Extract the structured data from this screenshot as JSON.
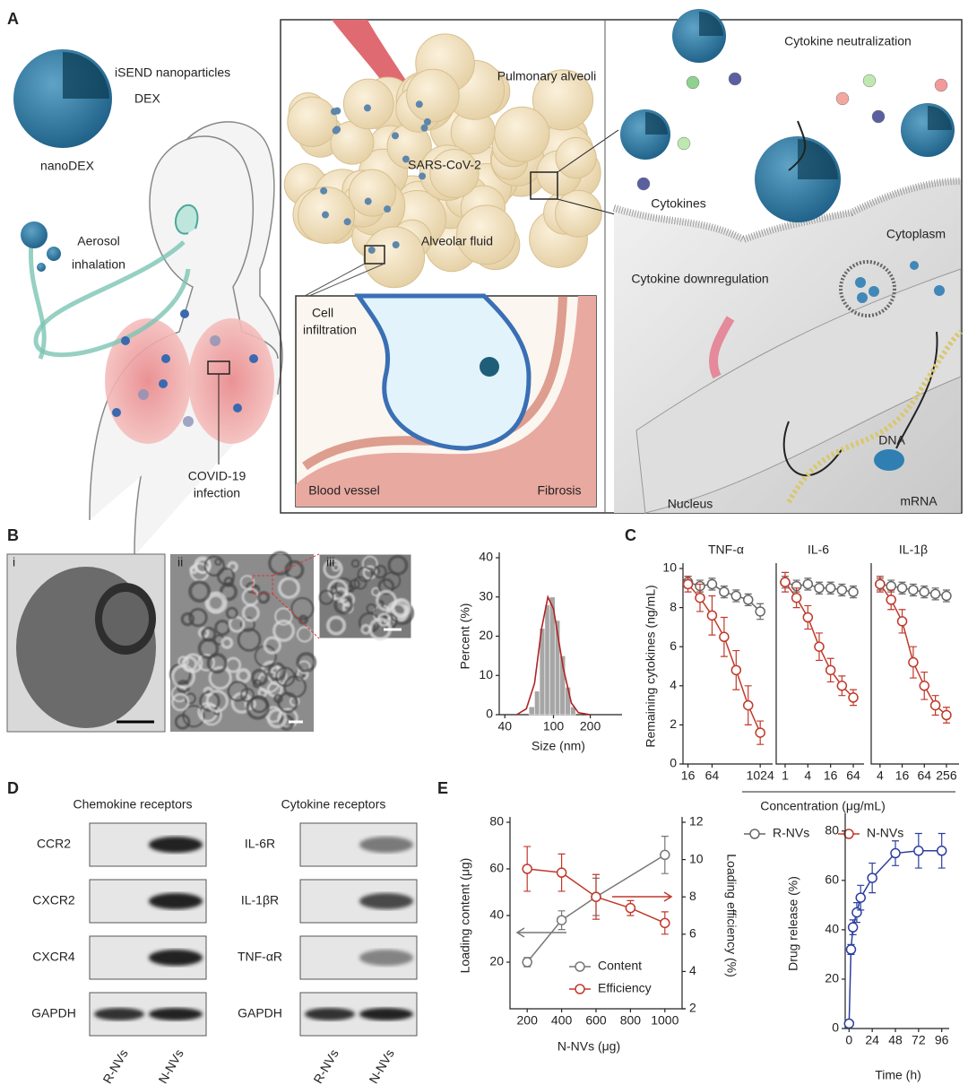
{
  "figure": {
    "panel_a": {
      "letter": "A",
      "nanoparticle": "iSEND nanoparticles",
      "dex": "DEX",
      "nanodex": "nanoDEX",
      "aerosol": [
        "Aerosol",
        "inhalation"
      ],
      "covid": [
        "COVID-19",
        "infection"
      ],
      "alveoli": "Pulmonary alveoli",
      "virus": "SARS-CoV-2",
      "fluid": "Alveolar fluid",
      "infiltration": [
        "Cell",
        "infiltration"
      ],
      "vessel": "Blood vessel",
      "fibrosis": "Fibrosis",
      "neutralization": "Cytokine neutralization",
      "cytokines": "Cytokines",
      "cytoplasm": "Cytoplasm",
      "downregulation": "Cytokine downregulation",
      "dna": "DNA",
      "nucleus": "Nucleus",
      "mrna": "mRNA"
    },
    "panel_b": {
      "letter": "B",
      "images": [
        "i",
        "ii",
        "iii"
      ]
    },
    "panel_c": {
      "letter": "C"
    },
    "panel_d": {
      "letter": "D",
      "groups": [
        {
          "title": "Chemokine receptors",
          "rows": [
            "CCR2",
            "CXCR2",
            "CXCR4",
            "GAPDH"
          ],
          "lanes": [
            "R-NVs",
            "N-NVs"
          ]
        },
        {
          "title": "Cytokine receptors",
          "rows": [
            "IL-6R",
            "IL-1βR",
            "TNF-αR",
            "GAPDH"
          ],
          "lanes": [
            "R-NVs",
            "N-NVs"
          ]
        }
      ]
    },
    "panel_e": {
      "letter": "E"
    }
  },
  "chart_data": [
    {
      "type": "histogram",
      "xlabel": "Size (nm)",
      "ylabel": "Percent (%)",
      "xscale": "log",
      "xlim": [
        36,
        340
      ],
      "ylim": [
        0,
        40
      ],
      "xticks": [
        40,
        100,
        200
      ],
      "yticks": [
        0,
        10,
        20,
        30,
        40
      ],
      "color": "#a6a6a6",
      "bins": [
        63,
        70,
        77,
        85,
        93,
        103,
        113,
        125,
        138,
        152
      ],
      "counts": [
        2,
        6,
        22,
        28,
        30,
        24,
        15,
        7,
        2
      ],
      "curve": {
        "color": "#b22222",
        "x": [
          50,
          60,
          70,
          80,
          90,
          100,
          120,
          140,
          160,
          200
        ],
        "values": [
          0,
          1.5,
          8,
          22,
          30,
          27,
          12,
          3,
          0.5,
          0
        ]
      }
    },
    {
      "type": "line",
      "title": "TNF-α",
      "ylabel": "Remaining cytokines (ng/mL)",
      "xscale": "log",
      "xlim": [
        12,
        1700
      ],
      "ylim": [
        0,
        10
      ],
      "xticks": [
        16,
        64,
        1024
      ],
      "yticks": [
        0,
        2,
        4,
        6,
        8,
        10
      ],
      "x": [
        16,
        32,
        64,
        128,
        256,
        512,
        1024
      ],
      "series": [
        {
          "name": "R-NVs",
          "color": "#666666",
          "values": [
            9.3,
            9.1,
            9.2,
            8.8,
            8.6,
            8.4,
            7.8
          ],
          "errors": [
            0.3,
            0.3,
            0.3,
            0.3,
            0.3,
            0.3,
            0.4
          ]
        },
        {
          "name": "N-NVs",
          "color": "#c0392b",
          "values": [
            9.2,
            8.5,
            7.6,
            6.5,
            4.8,
            3.0,
            1.6
          ],
          "errors": [
            0.4,
            0.7,
            1.0,
            1.0,
            1.0,
            1.0,
            0.6
          ]
        }
      ]
    },
    {
      "type": "line",
      "title": "IL-6",
      "xlabel": "Concentration (μg/mL)",
      "xscale": "log",
      "xlim": [
        0.58,
        99
      ],
      "ylim": [
        0,
        10
      ],
      "xticks": [
        1,
        4,
        16,
        64
      ],
      "x": [
        1,
        2,
        4,
        8,
        16,
        32,
        64
      ],
      "series": [
        {
          "color": "#666666",
          "values": [
            9.3,
            9.1,
            9.2,
            9.0,
            9.0,
            8.9,
            8.8
          ],
          "errors": [
            0.3,
            0.3,
            0.3,
            0.3,
            0.3,
            0.3,
            0.3
          ]
        },
        {
          "color": "#c0392b",
          "values": [
            9.3,
            8.5,
            7.5,
            6.0,
            4.8,
            4.0,
            3.4
          ],
          "errors": [
            0.5,
            0.5,
            0.6,
            0.7,
            0.6,
            0.5,
            0.4
          ]
        }
      ]
    },
    {
      "type": "line",
      "title": "IL-1β",
      "xscale": "log",
      "xlim": [
        2.3,
        450
      ],
      "ylim": [
        0,
        10
      ],
      "xticks": [
        4,
        16,
        64,
        256
      ],
      "x": [
        4,
        8,
        16,
        32,
        64,
        128,
        256
      ],
      "series": [
        {
          "color": "#666666",
          "values": [
            9.2,
            9.1,
            9.0,
            8.9,
            8.8,
            8.7,
            8.6
          ],
          "errors": [
            0.3,
            0.3,
            0.3,
            0.3,
            0.3,
            0.3,
            0.3
          ]
        },
        {
          "color": "#c0392b",
          "values": [
            9.2,
            8.4,
            7.3,
            5.2,
            4.0,
            3.0,
            2.5
          ],
          "errors": [
            0.4,
            0.5,
            0.6,
            0.8,
            0.7,
            0.5,
            0.4
          ]
        }
      ]
    },
    {
      "type": "line",
      "xlabel": "N-NVs (μg)",
      "ylabel": "Loading content (μg)",
      "y2label": "Loading efficiency (%)",
      "xlim": [
        100,
        1100
      ],
      "ylim": [
        0,
        80
      ],
      "y2lim": [
        2,
        12
      ],
      "xticks": [
        200,
        400,
        600,
        800,
        1000
      ],
      "yticks": [
        20,
        40,
        60,
        80
      ],
      "y2ticks": [
        2,
        4,
        6,
        8,
        10,
        12
      ],
      "series": [
        {
          "name": "Content",
          "color": "#777777",
          "x": [
            200,
            400,
            600,
            1000
          ],
          "values": [
            20,
            38,
            48,
            66
          ],
          "errors": [
            2,
            4,
            8,
            8
          ]
        },
        {
          "name": "Efficiency",
          "color": "#c0392b",
          "axis": "y2",
          "x": [
            200,
            400,
            600,
            800,
            1000
          ],
          "values": [
            9.5,
            9.3,
            8.0,
            7.4,
            6.6
          ],
          "errors": [
            1.2,
            1.0,
            1.2,
            0.4,
            0.6
          ]
        }
      ]
    },
    {
      "type": "line",
      "xlabel": "Time (h)",
      "ylabel": "Drug release (%)",
      "xlim": [
        -4,
        100
      ],
      "ylim": [
        0,
        85
      ],
      "xticks": [
        0,
        24,
        48,
        72,
        96
      ],
      "yticks": [
        0,
        20,
        40,
        60,
        80
      ],
      "series": [
        {
          "color": "#2c3e9e",
          "x": [
            0,
            2,
            4,
            8,
            12,
            24,
            48,
            72,
            96
          ],
          "values": [
            2,
            32,
            41,
            47,
            53,
            61,
            71,
            72,
            72
          ],
          "errors": [
            0,
            2,
            3,
            4,
            5,
            6,
            5,
            7,
            7
          ]
        }
      ]
    }
  ]
}
